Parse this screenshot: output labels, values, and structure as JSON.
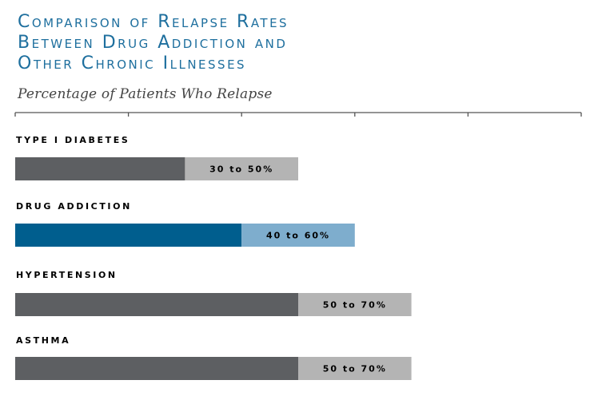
{
  "colors": {
    "title": "#1e6f9e",
    "subtitle": "#444444",
    "axis": "#555555",
    "base": "#5d5f62",
    "range": "#b4b4b4",
    "highlight_base": "#005e8e",
    "highlight_range": "#7eadcd"
  },
  "chart_data": {
    "type": "bar",
    "orientation": "horizontal",
    "title": [
      "Comparison of Relapse Rates",
      "Between Drug Addiction and",
      "Other Chronic Illnesses"
    ],
    "subtitle": "Percentage of Patients Who Relapse",
    "xlim": [
      0,
      100
    ],
    "tick_values": [
      0,
      20,
      40,
      60,
      80,
      100
    ],
    "categories": [
      "TYPE I DIABETES",
      "DRUG ADDICTION",
      "HYPERTENSION",
      "ASTHMA"
    ],
    "range_low": [
      30,
      40,
      50,
      50
    ],
    "range_high": [
      50,
      60,
      70,
      70
    ],
    "range_labels": [
      "30 to 50%",
      "40 to 60%",
      "50 to 70%",
      "50 to 70%"
    ],
    "highlighted": [
      false,
      true,
      false,
      false
    ]
  }
}
